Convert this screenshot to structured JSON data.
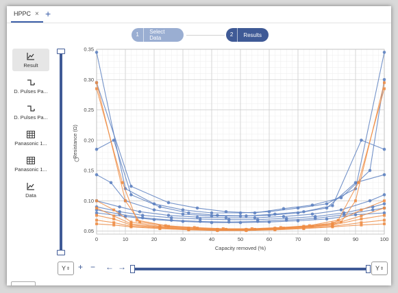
{
  "tabs": [
    {
      "label": "HPPC"
    }
  ],
  "stepper": {
    "steps": [
      {
        "num": "1",
        "label": "Select Data"
      },
      {
        "num": "2",
        "label": "Results"
      }
    ]
  },
  "sidebar": {
    "items": [
      {
        "label": "Result",
        "icon": "line-chart-icon"
      },
      {
        "label": "D. Pulses Pa...",
        "icon": "pulse-icon"
      },
      {
        "label": "D. Pulses Pa...",
        "icon": "pulse-icon"
      },
      {
        "label": "Panasonic 1...",
        "icon": "table-icon"
      },
      {
        "label": "Panasonic 1...",
        "icon": "table-icon"
      },
      {
        "label": "Data",
        "icon": "line-chart-icon"
      }
    ]
  },
  "controls": {
    "y_left": "Y",
    "y_right": "Y",
    "zoom_in": "+",
    "zoom_out": "−",
    "pan_left": "←",
    "pan_right": "→"
  },
  "chart_data": {
    "type": "line",
    "xlabel": "Capacity removed (%)",
    "ylabel": "Resistance (Ω)",
    "xlim": [
      0,
      100
    ],
    "ylim": [
      0.045,
      0.35
    ],
    "xticks": [
      0,
      10,
      20,
      30,
      40,
      50,
      60,
      70,
      80,
      90,
      100
    ],
    "yticks": [
      0.05,
      0.1,
      0.15,
      0.2,
      0.25,
      0.3,
      0.35
    ],
    "grid": true,
    "colors": {
      "blue": "#5b7fbf",
      "orange": "#ee8c43"
    },
    "series": [
      {
        "group": "blue",
        "points": [
          [
            0,
            0.345
          ],
          [
            10,
            0.12
          ],
          [
            20,
            0.095
          ],
          [
            30,
            0.085
          ],
          [
            40,
            0.08
          ],
          [
            50,
            0.08
          ],
          [
            60,
            0.082
          ],
          [
            70,
            0.088
          ],
          [
            80,
            0.095
          ],
          [
            90,
            0.12
          ],
          [
            100,
            0.345
          ]
        ]
      },
      {
        "group": "blue",
        "points": [
          [
            0,
            0.295
          ],
          [
            12,
            0.124
          ],
          [
            25,
            0.097
          ],
          [
            35,
            0.088
          ],
          [
            45,
            0.082
          ],
          [
            55,
            0.08
          ],
          [
            65,
            0.087
          ],
          [
            75,
            0.093
          ],
          [
            85,
            0.105
          ],
          [
            95,
            0.15
          ],
          [
            100,
            0.3
          ]
        ]
      },
      {
        "group": "blue",
        "points": [
          [
            0,
            0.185
          ],
          [
            6,
            0.2
          ],
          [
            12,
            0.11
          ],
          [
            22,
            0.09
          ],
          [
            32,
            0.08
          ],
          [
            42,
            0.076
          ],
          [
            52,
            0.075
          ],
          [
            62,
            0.078
          ],
          [
            72,
            0.082
          ],
          [
            82,
            0.092
          ],
          [
            92,
            0.2
          ],
          [
            100,
            0.185
          ]
        ]
      },
      {
        "group": "blue",
        "points": [
          [
            0,
            0.143
          ],
          [
            5,
            0.13
          ],
          [
            10,
            0.1
          ],
          [
            20,
            0.085
          ],
          [
            30,
            0.078
          ],
          [
            40,
            0.075
          ],
          [
            50,
            0.075
          ],
          [
            60,
            0.076
          ],
          [
            70,
            0.08
          ],
          [
            80,
            0.088
          ],
          [
            90,
            0.13
          ],
          [
            100,
            0.143
          ]
        ]
      },
      {
        "group": "blue",
        "points": [
          [
            0,
            0.1
          ],
          [
            8,
            0.09
          ],
          [
            15,
            0.082
          ],
          [
            25,
            0.076
          ],
          [
            35,
            0.073
          ],
          [
            45,
            0.072
          ],
          [
            55,
            0.072
          ],
          [
            65,
            0.074
          ],
          [
            75,
            0.078
          ],
          [
            85,
            0.085
          ],
          [
            95,
            0.1
          ],
          [
            100,
            0.11
          ]
        ]
      },
      {
        "group": "blue",
        "points": [
          [
            0,
            0.09
          ],
          [
            8,
            0.082
          ],
          [
            16,
            0.076
          ],
          [
            26,
            0.072
          ],
          [
            36,
            0.07
          ],
          [
            46,
            0.069
          ],
          [
            56,
            0.069
          ],
          [
            66,
            0.071
          ],
          [
            76,
            0.074
          ],
          [
            86,
            0.08
          ],
          [
            96,
            0.09
          ],
          [
            100,
            0.095
          ]
        ]
      },
      {
        "group": "blue",
        "points": [
          [
            0,
            0.085
          ],
          [
            8,
            0.078
          ],
          [
            16,
            0.072
          ],
          [
            26,
            0.068
          ],
          [
            36,
            0.066
          ],
          [
            46,
            0.065
          ],
          [
            56,
            0.066
          ],
          [
            66,
            0.068
          ],
          [
            76,
            0.071
          ],
          [
            86,
            0.077
          ],
          [
            96,
            0.085
          ],
          [
            100,
            0.088
          ]
        ]
      },
      {
        "group": "blue",
        "points": [
          [
            0,
            0.08
          ],
          [
            10,
            0.074
          ],
          [
            20,
            0.069
          ],
          [
            30,
            0.066
          ],
          [
            40,
            0.064
          ],
          [
            50,
            0.064
          ],
          [
            60,
            0.065
          ],
          [
            70,
            0.067
          ],
          [
            80,
            0.07
          ],
          [
            90,
            0.077
          ],
          [
            100,
            0.08
          ]
        ]
      },
      {
        "group": "orange",
        "points": [
          [
            0,
            0.295
          ],
          [
            10,
            0.1
          ],
          [
            15,
            0.065
          ],
          [
            25,
            0.058
          ],
          [
            35,
            0.055
          ],
          [
            45,
            0.053
          ],
          [
            55,
            0.053
          ],
          [
            65,
            0.055
          ],
          [
            75,
            0.058
          ],
          [
            85,
            0.065
          ],
          [
            90,
            0.1
          ],
          [
            100,
            0.295
          ]
        ]
      },
      {
        "group": "orange",
        "points": [
          [
            0,
            0.285
          ],
          [
            9,
            0.13
          ],
          [
            14,
            0.068
          ],
          [
            24,
            0.059
          ],
          [
            34,
            0.056
          ],
          [
            44,
            0.054
          ],
          [
            54,
            0.054
          ],
          [
            64,
            0.056
          ],
          [
            74,
            0.059
          ],
          [
            84,
            0.068
          ],
          [
            91,
            0.13
          ],
          [
            100,
            0.285
          ]
        ]
      },
      {
        "group": "orange",
        "points": [
          [
            0,
            0.1
          ],
          [
            6,
            0.085
          ],
          [
            12,
            0.065
          ],
          [
            22,
            0.058
          ],
          [
            32,
            0.055
          ],
          [
            42,
            0.053
          ],
          [
            52,
            0.053
          ],
          [
            62,
            0.055
          ],
          [
            72,
            0.058
          ],
          [
            82,
            0.063
          ],
          [
            92,
            0.085
          ],
          [
            100,
            0.1
          ]
        ]
      },
      {
        "group": "orange",
        "points": [
          [
            0,
            0.088
          ],
          [
            6,
            0.075
          ],
          [
            12,
            0.062
          ],
          [
            22,
            0.057
          ],
          [
            32,
            0.054
          ],
          [
            42,
            0.052
          ],
          [
            52,
            0.052
          ],
          [
            62,
            0.054
          ],
          [
            72,
            0.057
          ],
          [
            82,
            0.061
          ],
          [
            92,
            0.075
          ],
          [
            100,
            0.088
          ]
        ]
      },
      {
        "group": "orange",
        "points": [
          [
            0,
            0.076
          ],
          [
            6,
            0.07
          ],
          [
            12,
            0.06
          ],
          [
            22,
            0.056
          ],
          [
            32,
            0.053
          ],
          [
            42,
            0.052
          ],
          [
            52,
            0.052
          ],
          [
            62,
            0.053
          ],
          [
            72,
            0.056
          ],
          [
            82,
            0.06
          ],
          [
            92,
            0.07
          ],
          [
            100,
            0.076
          ]
        ]
      },
      {
        "group": "orange",
        "points": [
          [
            0,
            0.068
          ],
          [
            6,
            0.064
          ],
          [
            12,
            0.058
          ],
          [
            22,
            0.055
          ],
          [
            32,
            0.053
          ],
          [
            42,
            0.051
          ],
          [
            52,
            0.051
          ],
          [
            62,
            0.053
          ],
          [
            72,
            0.055
          ],
          [
            82,
            0.058
          ],
          [
            92,
            0.064
          ],
          [
            100,
            0.068
          ]
        ]
      },
      {
        "group": "orange",
        "points": [
          [
            0,
            0.062
          ],
          [
            6,
            0.06
          ],
          [
            12,
            0.057
          ],
          [
            22,
            0.054
          ],
          [
            32,
            0.052
          ],
          [
            42,
            0.051
          ],
          [
            52,
            0.051
          ],
          [
            62,
            0.052
          ],
          [
            72,
            0.054
          ],
          [
            82,
            0.057
          ],
          [
            92,
            0.06
          ],
          [
            100,
            0.062
          ]
        ]
      }
    ]
  }
}
